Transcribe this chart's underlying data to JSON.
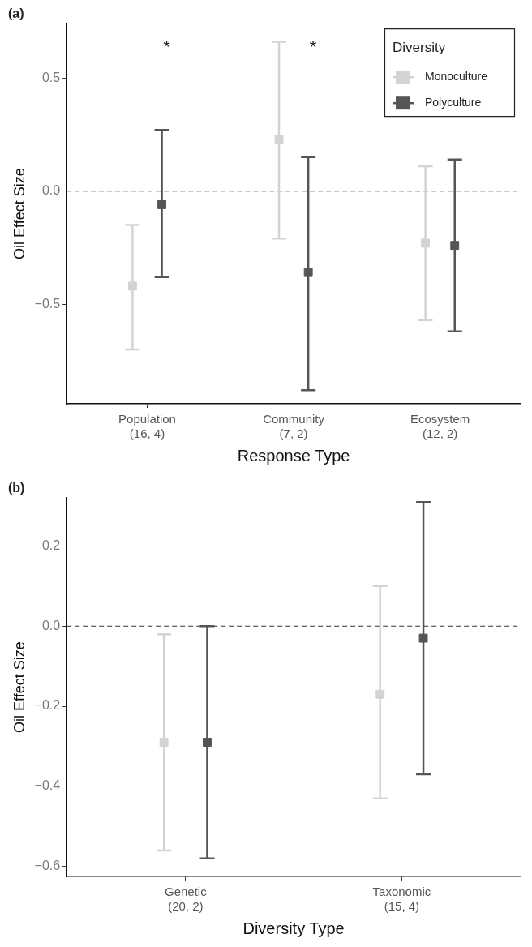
{
  "chart_data": [
    {
      "type": "scatter",
      "title": "(a)",
      "xlabel": "Response Type",
      "ylabel": "Oil Effect Size",
      "legend_title": "Diversity",
      "legend": "top right",
      "marker": "square",
      "grid": false,
      "categories": [
        "Population\n(16, 4)",
        "Community\n(7, 2)",
        "Ecosystem\n(12, 2)"
      ],
      "ylim": [
        -0.94,
        0.74
      ],
      "yticks": [
        {
          "value": -0.5,
          "label": "−0.5"
        },
        {
          "value": 0,
          "label": "0.0"
        },
        {
          "value": 0.5,
          "label": "0.5"
        }
      ],
      "series": [
        {
          "name": "Monoculture",
          "color": "#d3d3d3",
          "values": [
            -0.42,
            0.23,
            -0.23
          ],
          "errors": [
            [
              -0.7,
              -0.15
            ],
            [
              -0.21,
              0.66
            ],
            [
              -0.57,
              0.11
            ]
          ]
        },
        {
          "name": "Polyculture",
          "color": "#555555",
          "values": [
            -0.06,
            -0.36,
            -0.24
          ],
          "errors": [
            [
              -0.38,
              0.27
            ],
            [
              -0.88,
              0.15
            ],
            [
              -0.62,
              0.14
            ]
          ]
        }
      ],
      "ref_lines": [
        {
          "axis": "y",
          "value": 0,
          "color": "#333333",
          "line_style": "dashed"
        }
      ],
      "annotations": [
        "*",
        "*"
      ]
    },
    {
      "type": "scatter",
      "title": "(b)",
      "xlabel": "Diversity Type",
      "ylabel": "Oil Effect Size",
      "legend": false,
      "marker": "square",
      "grid": false,
      "categories": [
        "Genetic\n(20, 2)",
        "Taxonomic\n(15, 4)"
      ],
      "ylim": [
        -0.625,
        0.32
      ],
      "yticks": [
        {
          "value": -0.6,
          "label": "−0.6"
        },
        {
          "value": -0.4,
          "label": "−0.4"
        },
        {
          "value": -0.2,
          "label": "−0.2"
        },
        {
          "value": 0,
          "label": "0.0"
        },
        {
          "value": 0.2,
          "label": "0.2"
        }
      ],
      "series": [
        {
          "color": "#d3d3d3",
          "values": [
            -0.29,
            -0.17
          ],
          "errors": [
            [
              -0.56,
              -0.02
            ],
            [
              -0.43,
              0.1
            ]
          ]
        },
        {
          "color": "#555555",
          "values": [
            -0.29,
            -0.03
          ],
          "errors": [
            [
              -0.58,
              0.0
            ],
            [
              -0.37,
              0.31
            ]
          ]
        }
      ],
      "ref_lines": [
        {
          "axis": "y",
          "value": 0,
          "color": "#333333",
          "line_style": "dashed"
        }
      ]
    }
  ]
}
